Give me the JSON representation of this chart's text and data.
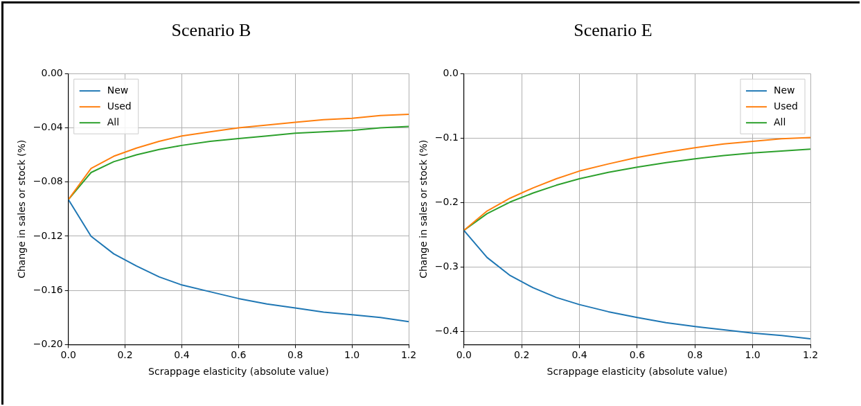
{
  "chart_data": [
    {
      "type": "line",
      "title": "Scenario B",
      "xlabel": "Scrappage elasticity (absolute value)",
      "ylabel": "Change in sales or stock (%)",
      "x": [
        0,
        0.08,
        0.16,
        0.24,
        0.32,
        0.4,
        0.5,
        0.6,
        0.7,
        0.8,
        0.9,
        1.0,
        1.1,
        1.2
      ],
      "series": [
        {
          "name": "New",
          "color": "#1f77b4",
          "values": [
            -0.093,
            -0.12,
            -0.133,
            -0.142,
            -0.15,
            -0.156,
            -0.161,
            -0.166,
            -0.17,
            -0.173,
            -0.176,
            -0.178,
            -0.18,
            -0.183
          ]
        },
        {
          "name": "Used",
          "color": "#ff7f0e",
          "values": [
            -0.093,
            -0.07,
            -0.061,
            -0.055,
            -0.05,
            -0.046,
            -0.043,
            -0.04,
            -0.038,
            -0.036,
            -0.034,
            -0.033,
            -0.031,
            -0.03
          ]
        },
        {
          "name": "All",
          "color": "#2ca02c",
          "values": [
            -0.093,
            -0.073,
            -0.065,
            -0.06,
            -0.056,
            -0.053,
            -0.05,
            -0.048,
            -0.046,
            -0.044,
            -0.043,
            -0.042,
            -0.04,
            -0.039
          ]
        }
      ],
      "xlim": [
        0,
        1.2
      ],
      "xticks": [
        {
          "value": 0,
          "label": "0.0"
        },
        {
          "value": 0.2,
          "label": "0.2"
        },
        {
          "value": 0.4,
          "label": "0.4"
        },
        {
          "value": 0.6,
          "label": "0.6"
        },
        {
          "value": 0.8,
          "label": "0.8"
        },
        {
          "value": 1.0,
          "label": "1.0"
        },
        {
          "value": 1.2,
          "label": "1.2"
        }
      ],
      "ylim": [
        -0.2,
        0
      ],
      "yticks": [
        {
          "value": -0.2,
          "label": "−0.20"
        },
        {
          "value": -0.16,
          "label": "−0.16"
        },
        {
          "value": -0.12,
          "label": "−0.12"
        },
        {
          "value": -0.08,
          "label": "−0.08"
        },
        {
          "value": -0.04,
          "label": "−0.04"
        },
        {
          "value": 0,
          "label": "0.00"
        }
      ],
      "grid": true,
      "legend": "top left",
      "marker": "none",
      "line_style": "solid"
    },
    {
      "type": "line",
      "title": "Scenario E",
      "xlabel": "Scrappage elasticity (absolute value)",
      "ylabel": "Change in sales or stock (%)",
      "x": [
        0,
        0.08,
        0.16,
        0.24,
        0.32,
        0.4,
        0.5,
        0.6,
        0.7,
        0.8,
        0.9,
        1.0,
        1.1,
        1.2
      ],
      "series": [
        {
          "name": "New",
          "color": "#1f77b4",
          "values": [
            -0.243,
            -0.285,
            -0.313,
            -0.332,
            -0.347,
            -0.358,
            -0.369,
            -0.378,
            -0.386,
            -0.392,
            -0.397,
            -0.402,
            -0.406,
            -0.411
          ]
        },
        {
          "name": "Used",
          "color": "#ff7f0e",
          "values": [
            -0.243,
            -0.213,
            -0.193,
            -0.177,
            -0.163,
            -0.151,
            -0.14,
            -0.13,
            -0.122,
            -0.115,
            -0.109,
            -0.105,
            -0.101,
            -0.099
          ]
        },
        {
          "name": "All",
          "color": "#2ca02c",
          "values": [
            -0.243,
            -0.217,
            -0.199,
            -0.185,
            -0.173,
            -0.163,
            -0.153,
            -0.145,
            -0.138,
            -0.132,
            -0.127,
            -0.123,
            -0.12,
            -0.117
          ]
        }
      ],
      "xlim": [
        0,
        1.2
      ],
      "xticks": [
        {
          "value": 0,
          "label": "0.0"
        },
        {
          "value": 0.2,
          "label": "0.2"
        },
        {
          "value": 0.4,
          "label": "0.4"
        },
        {
          "value": 0.6,
          "label": "0.6"
        },
        {
          "value": 0.8,
          "label": "0.8"
        },
        {
          "value": 1.0,
          "label": "1.0"
        },
        {
          "value": 1.2,
          "label": "1.2"
        }
      ],
      "ylim": [
        -0.42,
        0
      ],
      "yticks": [
        {
          "value": -0.4,
          "label": "−0.4"
        },
        {
          "value": -0.3,
          "label": "−0.3"
        },
        {
          "value": -0.2,
          "label": "−0.2"
        },
        {
          "value": -0.1,
          "label": "−0.1"
        },
        {
          "value": 0,
          "label": "0.0"
        }
      ],
      "grid": true,
      "legend": "top right",
      "marker": "none",
      "line_style": "solid"
    }
  ]
}
